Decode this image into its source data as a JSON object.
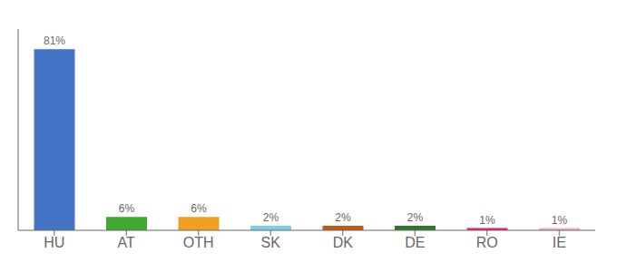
{
  "chart_data": {
    "type": "bar",
    "categories": [
      "HU",
      "AT",
      "OTH",
      "SK",
      "DK",
      "DE",
      "RO",
      "IE"
    ],
    "values": [
      81,
      6,
      6,
      2,
      2,
      2,
      1,
      1
    ],
    "value_labels": [
      "81%",
      "6%",
      "6%",
      "2%",
      "2%",
      "2%",
      "1%",
      "1%"
    ],
    "data_labels": true,
    "colors": [
      "#4472c4",
      "#3daa2e",
      "#f0a020",
      "#7ecef0",
      "#c05a18",
      "#2d7a2d",
      "#e8206a",
      "#f4b0c8"
    ],
    "ylim": [
      0,
      90
    ],
    "grid": false,
    "tick_labels": "x"
  }
}
